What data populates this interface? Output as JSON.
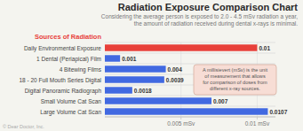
{
  "chart_data": {
    "type": "bar",
    "orientation": "horizontal",
    "title": "Radiation Exposure Comparison Chart",
    "subtitle": "Considering the average person is exposed to 2.0 - 4.5 mSv radiation a year,\nthe amount of radiation received during dental x-rays is minimal.",
    "ylabel": "Sources of Radiation",
    "categories": [
      "Daily Environmental Exposure",
      "1 Dental (Periapical) Film",
      "4 Bitewing Films",
      "18 - 20 Full Mouth Series Digital",
      "Digital Panoramic Radiograph",
      "Small Volume Cat Scan",
      "Large Volume Cat Scan"
    ],
    "values": [
      0.01,
      0.001,
      0.004,
      0.0039,
      0.0018,
      0.007,
      0.0107
    ],
    "colors": [
      "#e8403a",
      "#4169e1",
      "#4169e1",
      "#4169e1",
      "#4169e1",
      "#4169e1",
      "#4169e1"
    ],
    "data_labels": true,
    "xlim": [
      0,
      0.0112
    ],
    "xticks": [
      {
        "value": 0.005,
        "label": "0.005 mSv"
      },
      {
        "value": 0.01,
        "label": "0.01 mSv"
      }
    ],
    "grid": true,
    "annotation": "A millisievert (mSv) is the unit\nof measurement that allows\nfor comparison of doses from\ndifferent x-ray sources.",
    "footer": "© Dear Doctor, Inc."
  }
}
